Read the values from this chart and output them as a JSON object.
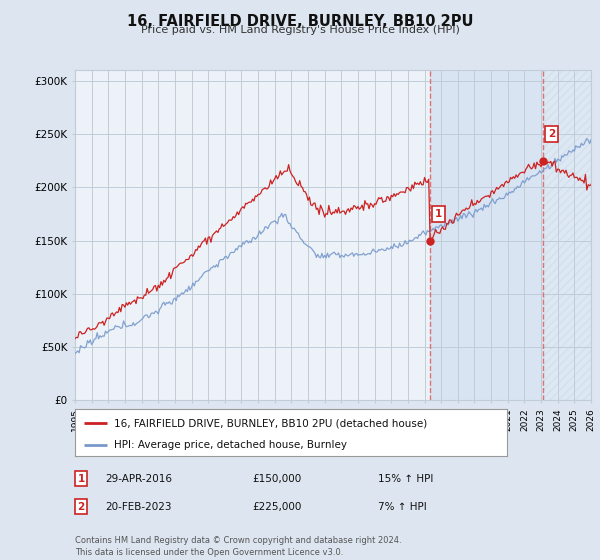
{
  "title": "16, FAIRFIELD DRIVE, BURNLEY, BB10 2PU",
  "subtitle": "Price paid vs. HM Land Registry's House Price Index (HPI)",
  "line1_label": "16, FAIRFIELD DRIVE, BURNLEY, BB10 2PU (detached house)",
  "line2_label": "HPI: Average price, detached house, Burnley",
  "line1_color": "#cc2222",
  "line2_color": "#7799cc",
  "marker_color": "#cc2222",
  "bg_color": "#dde6f0",
  "plot_bg_color": "#edf2f8",
  "highlight_color": "#d0dff0",
  "grid_color": "#c0ccd8",
  "vline_color": "#dd6666",
  "annotation1": {
    "label": "1",
    "date": "29-APR-2016",
    "price": "£150,000",
    "hpi": "15% ↑ HPI"
  },
  "annotation2": {
    "label": "2",
    "date": "20-FEB-2023",
    "price": "£225,000",
    "hpi": "7% ↑ HPI"
  },
  "footer": "Contains HM Land Registry data © Crown copyright and database right 2024.\nThis data is licensed under the Open Government Licence v3.0.",
  "xmin": 1995.0,
  "xmax": 2026.0,
  "ymin": 0,
  "ymax": 310000,
  "yticks": [
    0,
    50000,
    100000,
    150000,
    200000,
    250000,
    300000
  ],
  "ytick_labels": [
    "£0",
    "£50K",
    "£100K",
    "£150K",
    "£200K",
    "£250K",
    "£300K"
  ],
  "sale1_x": 2016.33,
  "sale1_y": 150000,
  "sale2_x": 2023.12,
  "sale2_y": 225000,
  "vline1_x": 2016.33,
  "vline2_x": 2023.12
}
